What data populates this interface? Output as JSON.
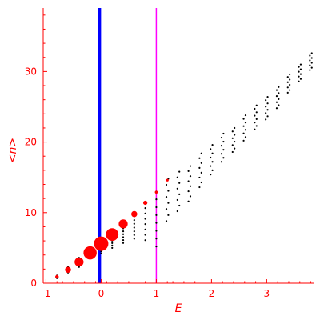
{
  "chart_data": {
    "type": "scatter",
    "title": "",
    "xlabel": "E",
    "ylabel": "<n>",
    "xlim": [
      -1.05,
      3.85
    ],
    "ylim": [
      0,
      39
    ],
    "x_ticks": [
      -1,
      0,
      1,
      2,
      3
    ],
    "x_tick_labels": [
      "-1",
      "0",
      "1",
      "2",
      "3"
    ],
    "y_ticks": [
      0,
      10,
      20,
      30
    ],
    "y_tick_labels": [
      "0",
      "10",
      "20",
      "30"
    ],
    "grid": false,
    "axis_color": "#ff0000",
    "vertical_lines": [
      {
        "x": -0.03,
        "color": "#0000ff",
        "style": "thick"
      },
      {
        "x": 1.0,
        "color": "#ff00ff",
        "style": "thin"
      }
    ],
    "red_markers": {
      "color": "#ff0000",
      "points": [
        {
          "x": -0.8,
          "y": 0.9,
          "weight": 0.1
        },
        {
          "x": -0.6,
          "y": 1.9,
          "weight": 0.3
        },
        {
          "x": -0.4,
          "y": 3.0,
          "weight": 0.55
        },
        {
          "x": -0.2,
          "y": 4.3,
          "weight": 0.9
        },
        {
          "x": 0.0,
          "y": 5.6,
          "weight": 1.0
        },
        {
          "x": 0.2,
          "y": 6.9,
          "weight": 0.85
        },
        {
          "x": 0.4,
          "y": 8.4,
          "weight": 0.55
        },
        {
          "x": 0.6,
          "y": 9.8,
          "weight": 0.3
        },
        {
          "x": 0.8,
          "y": 11.4,
          "weight": 0.15
        },
        {
          "x": 1.0,
          "y": 12.9,
          "weight": 0.04
        },
        {
          "x": 1.2,
          "y": 14.6,
          "weight": 0.02
        }
      ]
    },
    "dot_columns": {
      "color": "#000000",
      "columns": [
        {
          "x": -0.8,
          "y_min": 0.7,
          "y_max": 1.1
        },
        {
          "x": -0.6,
          "y_min": 1.5,
          "y_max": 2.3
        },
        {
          "x": -0.4,
          "y_min": 2.3,
          "y_max": 3.6
        },
        {
          "x": -0.2,
          "y_min": 3.5,
          "y_max": 5.0
        },
        {
          "x": 0.0,
          "y_min": 4.2,
          "y_max": 6.2
        },
        {
          "x": 0.2,
          "y_min": 5.0,
          "y_max": 7.4
        },
        {
          "x": 0.4,
          "y_min": 5.7,
          "y_max": 8.6
        },
        {
          "x": 0.6,
          "y_min": 6.3,
          "y_max": 10.0
        },
        {
          "x": 0.8,
          "y_min": 6.1,
          "y_max": 11.4
        },
        {
          "x": 1.0,
          "y_min": 5.2,
          "y_max": 13.0
        },
        {
          "x": 1.2,
          "y_min": 8.8,
          "y_max": 14.8
        },
        {
          "x": 1.4,
          "y_min": 10.2,
          "y_max": 15.8
        },
        {
          "x": 1.6,
          "y_min": 11.6,
          "y_max": 16.6
        },
        {
          "x": 1.8,
          "y_min": 13.6,
          "y_max": 18.4
        },
        {
          "x": 2.0,
          "y_min": 15.4,
          "y_max": 19.6
        },
        {
          "x": 2.2,
          "y_min": 17.2,
          "y_max": 21.2
        },
        {
          "x": 2.4,
          "y_min": 18.6,
          "y_max": 22.0
        },
        {
          "x": 2.6,
          "y_min": 20.2,
          "y_max": 23.8
        },
        {
          "x": 2.8,
          "y_min": 21.8,
          "y_max": 25.2
        },
        {
          "x": 3.0,
          "y_min": 23.2,
          "y_max": 26.4
        },
        {
          "x": 3.2,
          "y_min": 24.8,
          "y_max": 27.8
        },
        {
          "x": 3.4,
          "y_min": 27.0,
          "y_max": 29.6
        },
        {
          "x": 3.6,
          "y_min": 28.6,
          "y_max": 31.0
        },
        {
          "x": 3.8,
          "y_min": 30.2,
          "y_max": 32.6
        }
      ]
    }
  }
}
